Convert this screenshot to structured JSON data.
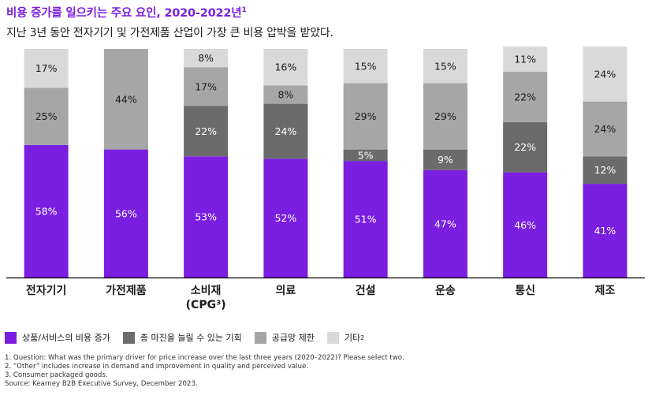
{
  "header": {
    "title": "비용 증가를 일으키는 주요 요인, 2020-2022년",
    "title_sup": "1",
    "subtitle": "지난 3년 동안 전자기기 및 가전제품 산업이 가장 큰 비용 압박을 받았다."
  },
  "colors": {
    "purple": "#7a1fe0",
    "dark_gray": "#6b6b6b",
    "mid_gray": "#a6a6a6",
    "light_gray": "#d9d9d9"
  },
  "legend": [
    {
      "label": "상품/서비스의 비용 증가",
      "sup": "",
      "color": "#7a1fe0"
    },
    {
      "label": "총 마진을 늘릴 수 있는 기회",
      "sup": "",
      "color": "#6b6b6b"
    },
    {
      "label": "공급망 제한",
      "sup": "",
      "color": "#a6a6a6"
    },
    {
      "label": "기타",
      "sup": "2",
      "color": "#d9d9d9"
    }
  ],
  "chart_data": {
    "type": "bar",
    "stacked": true,
    "categories": [
      "전자기기",
      "가전제품",
      "소비재\n(CPG³)",
      "의료",
      "건설",
      "운송",
      "통신",
      "제조"
    ],
    "series": [
      {
        "name": "상품/서비스의 비용 증가",
        "color": "#7a1fe0",
        "values": [
          58,
          56,
          53,
          52,
          51,
          47,
          46,
          41
        ]
      },
      {
        "name": "총 마진을 늘릴 수 있는 기회",
        "color": "#6b6b6b",
        "values": [
          0,
          0,
          22,
          24,
          5,
          9,
          22,
          12
        ]
      },
      {
        "name": "공급망 제한",
        "color": "#a6a6a6",
        "values": [
          25,
          44,
          17,
          8,
          29,
          29,
          22,
          24
        ]
      },
      {
        "name": "기타",
        "color": "#d9d9d9",
        "values": [
          17,
          0,
          8,
          16,
          15,
          15,
          11,
          24
        ]
      }
    ],
    "value_labels": [
      [
        "58%",
        "56%",
        "53%",
        "52%",
        "51%",
        "47%",
        "46%",
        "41%"
      ],
      [
        "",
        "",
        "22%",
        "24%",
        "5%",
        "9%",
        "22%",
        "12%"
      ],
      [
        "25%",
        "44%",
        "17%",
        "8%",
        "29%",
        "29%",
        "22%",
        "24%"
      ],
      [
        "17%",
        "",
        "8%",
        "16%",
        "15%",
        "15%",
        "11%",
        "24%"
      ]
    ],
    "ylim": [
      0,
      100
    ],
    "grid": false,
    "legend_position": "bottom"
  },
  "footnotes": [
    "1. Question: What was the primary driver for price increase over the last three years (2020–2022)? Please select two.",
    "2. “Other” includes increase in demand and improvement in quality and perceived value.",
    "3. Consumer packaged goods.",
    "Source: Kearney B2B Executive Survey, December 2023."
  ]
}
